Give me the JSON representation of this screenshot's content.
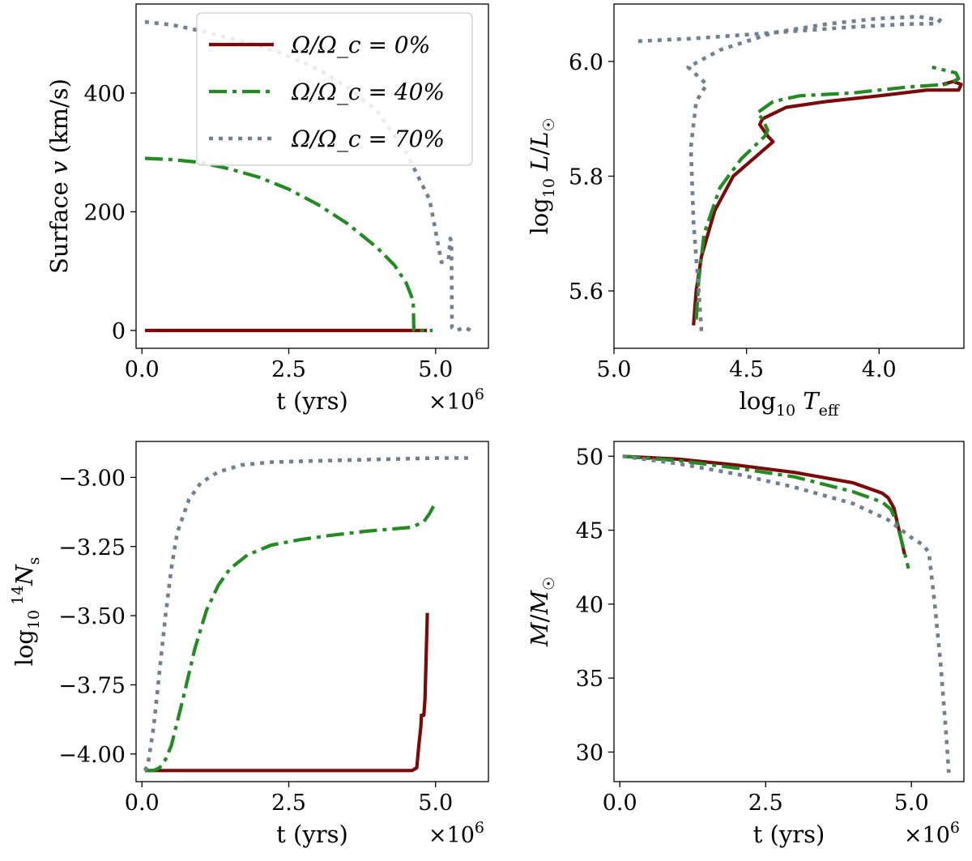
{
  "colors": {
    "omega0": "#7b0a0a",
    "omega40": "#228b22",
    "omega70": "#708090"
  },
  "legend": {
    "placement": "top-right of first panel",
    "entries": [
      {
        "series": "omega0",
        "label": "Ω/Ω_c = 0%"
      },
      {
        "series": "omega40",
        "label": "Ω/Ω_c = 40%"
      },
      {
        "series": "omega70",
        "label": "Ω/Ω_c = 70%"
      }
    ]
  },
  "chart_data": [
    {
      "id": "velocity",
      "type": "line",
      "xlabel": "t (yrs)",
      "ylabel": "Surface v (km/s)",
      "x_multiplier": "×10^6",
      "xlim": [
        -0.1,
        5.9
      ],
      "ylim": [
        -30,
        550
      ],
      "xticks": [
        0.0,
        2.5,
        5.0
      ],
      "xtick_labels": [
        "0.0",
        "2.5",
        "5.0"
      ],
      "yticks": [
        0,
        200,
        400
      ],
      "ytick_labels": [
        "0",
        "200",
        "400"
      ],
      "series": [
        {
          "key": "omega0",
          "name": "Ω/Ω_c = 0%",
          "style": "solid",
          "points": [
            [
              0.05,
              0
            ],
            [
              4.85,
              0
            ]
          ]
        },
        {
          "key": "omega40",
          "name": "Ω/Ω_c = 40%",
          "style": "dashdot",
          "points": [
            [
              0.05,
              290
            ],
            [
              0.5,
              288
            ],
            [
              1.0,
              283
            ],
            [
              1.5,
              272
            ],
            [
              2.0,
              258
            ],
            [
              2.5,
              238
            ],
            [
              3.0,
              212
            ],
            [
              3.5,
              180
            ],
            [
              4.0,
              140
            ],
            [
              4.3,
              110
            ],
            [
              4.5,
              80
            ],
            [
              4.62,
              50
            ],
            [
              4.63,
              0
            ],
            [
              4.95,
              0
            ]
          ]
        },
        {
          "key": "omega70",
          "name": "Ω/Ω_c = 70%",
          "style": "dotted",
          "points": [
            [
              0.05,
              520
            ],
            [
              0.5,
              515
            ],
            [
              1.0,
              505
            ],
            [
              1.5,
              492
            ],
            [
              2.0,
              480
            ],
            [
              2.5,
              462
            ],
            [
              3.0,
              440
            ],
            [
              3.5,
              410
            ],
            [
              4.0,
              370
            ],
            [
              4.5,
              300
            ],
            [
              4.9,
              220
            ],
            [
              5.1,
              115
            ],
            [
              5.22,
              120
            ],
            [
              5.25,
              155
            ],
            [
              5.27,
              150
            ],
            [
              5.28,
              5
            ],
            [
              5.35,
              0
            ],
            [
              5.5,
              5
            ],
            [
              5.6,
              0
            ]
          ]
        }
      ]
    },
    {
      "id": "hrd",
      "type": "line",
      "xlabel": "log₁₀ T_eff",
      "ylabel": "log₁₀ L/L☉",
      "xlim": [
        5.0,
        3.68
      ],
      "ylim": [
        5.5,
        6.1
      ],
      "xticks": [
        5.0,
        4.5,
        4.0
      ],
      "xtick_labels": [
        "5.0",
        "4.5",
        "4.0"
      ],
      "yticks": [
        5.6,
        5.8,
        6.0
      ],
      "ytick_labels": [
        "5.6",
        "5.8",
        "6.0"
      ],
      "series": [
        {
          "key": "omega0",
          "name": "Ω/Ω_c = 0%",
          "style": "solid",
          "points": [
            [
              4.7,
              5.54
            ],
            [
              4.69,
              5.6
            ],
            [
              4.67,
              5.66
            ],
            [
              4.62,
              5.74
            ],
            [
              4.55,
              5.8
            ],
            [
              4.45,
              5.84
            ],
            [
              4.4,
              5.86
            ],
            [
              4.42,
              5.87
            ],
            [
              4.45,
              5.89
            ],
            [
              4.44,
              5.9
            ],
            [
              4.35,
              5.92
            ],
            [
              4.2,
              5.93
            ],
            [
              4.0,
              5.94
            ],
            [
              3.82,
              5.95
            ],
            [
              3.7,
              5.95
            ],
            [
              3.69,
              5.96
            ],
            [
              3.72,
              5.965
            ],
            [
              3.76,
              5.96
            ]
          ]
        },
        {
          "key": "omega40",
          "name": "Ω/Ω_c = 40%",
          "style": "dashdot",
          "points": [
            [
              4.69,
              5.55
            ],
            [
              4.68,
              5.62
            ],
            [
              4.66,
              5.7
            ],
            [
              4.6,
              5.78
            ],
            [
              4.52,
              5.83
            ],
            [
              4.43,
              5.87
            ],
            [
              4.42,
              5.88
            ],
            [
              4.44,
              5.9
            ],
            [
              4.46,
              5.91
            ],
            [
              4.4,
              5.93
            ],
            [
              4.3,
              5.94
            ],
            [
              4.1,
              5.945
            ],
            [
              3.9,
              5.955
            ],
            [
              3.75,
              5.96
            ],
            [
              3.72,
              5.965
            ],
            [
              3.7,
              5.97
            ],
            [
              3.71,
              5.98
            ],
            [
              3.8,
              5.99
            ]
          ]
        },
        {
          "key": "omega70",
          "name": "Ω/Ω_c = 70%",
          "style": "dotted",
          "points": [
            [
              4.67,
              5.53
            ],
            [
              4.68,
              5.6
            ],
            [
              4.7,
              5.72
            ],
            [
              4.71,
              5.85
            ],
            [
              4.69,
              5.93
            ],
            [
              4.65,
              5.96
            ],
            [
              4.72,
              5.99
            ],
            [
              4.6,
              6.02
            ],
            [
              4.4,
              6.05
            ],
            [
              4.2,
              6.065
            ],
            [
              4.0,
              6.075
            ],
            [
              3.85,
              6.078
            ],
            [
              3.77,
              6.072
            ],
            [
              3.78,
              6.066
            ],
            [
              3.9,
              6.065
            ],
            [
              4.1,
              6.06
            ],
            [
              4.4,
              6.05
            ],
            [
              4.7,
              6.04
            ],
            [
              4.92,
              6.035
            ]
          ]
        }
      ]
    },
    {
      "id": "nitrogen",
      "type": "line",
      "xlabel": "t (yrs)",
      "ylabel": "log₁₀ ¹⁴N_s",
      "x_multiplier": "×10^6",
      "xlim": [
        -0.1,
        5.9
      ],
      "ylim": [
        -4.1,
        -2.87
      ],
      "xticks": [
        0.0,
        2.5,
        5.0
      ],
      "xtick_labels": [
        "0.0",
        "2.5",
        "5.0"
      ],
      "yticks": [
        -4.0,
        -3.75,
        -3.5,
        -3.25,
        -3.0
      ],
      "ytick_labels": [
        "−4.00",
        "−3.75",
        "−3.50",
        "−3.25",
        "−3.00"
      ],
      "series": [
        {
          "key": "omega0",
          "name": "Ω/Ω_c = 0%",
          "style": "solid",
          "points": [
            [
              0.05,
              -4.06
            ],
            [
              4.6,
              -4.06
            ],
            [
              4.68,
              -4.05
            ],
            [
              4.72,
              -3.96
            ],
            [
              4.75,
              -3.9
            ],
            [
              4.76,
              -3.86
            ],
            [
              4.8,
              -3.86
            ],
            [
              4.82,
              -3.8
            ],
            [
              4.84,
              -3.65
            ],
            [
              4.86,
              -3.49
            ]
          ]
        },
        {
          "key": "omega40",
          "name": "Ω/Ω_c = 40%",
          "style": "dashdot",
          "points": [
            [
              0.05,
              -4.06
            ],
            [
              0.2,
              -4.06
            ],
            [
              0.3,
              -4.05
            ],
            [
              0.4,
              -4.02
            ],
            [
              0.5,
              -3.97
            ],
            [
              0.7,
              -3.8
            ],
            [
              0.9,
              -3.62
            ],
            [
              1.1,
              -3.48
            ],
            [
              1.3,
              -3.39
            ],
            [
              1.5,
              -3.33
            ],
            [
              1.8,
              -3.28
            ],
            [
              2.2,
              -3.245
            ],
            [
              2.7,
              -3.225
            ],
            [
              3.2,
              -3.21
            ],
            [
              3.8,
              -3.195
            ],
            [
              4.6,
              -3.18
            ],
            [
              4.8,
              -3.16
            ],
            [
              4.9,
              -3.13
            ],
            [
              5.0,
              -3.09
            ]
          ]
        },
        {
          "key": "omega70",
          "name": "Ω/Ω_c = 70%",
          "style": "dotted",
          "points": [
            [
              0.05,
              -4.06
            ],
            [
              0.1,
              -4.04
            ],
            [
              0.2,
              -3.9
            ],
            [
              0.3,
              -3.7
            ],
            [
              0.4,
              -3.5
            ],
            [
              0.5,
              -3.33
            ],
            [
              0.6,
              -3.2
            ],
            [
              0.8,
              -3.08
            ],
            [
              1.0,
              -3.02
            ],
            [
              1.3,
              -2.98
            ],
            [
              1.7,
              -2.955
            ],
            [
              2.2,
              -2.945
            ],
            [
              3.0,
              -2.94
            ],
            [
              4.0,
              -2.935
            ],
            [
              5.0,
              -2.93
            ],
            [
              5.6,
              -2.93
            ]
          ]
        }
      ]
    },
    {
      "id": "mass",
      "type": "line",
      "xlabel": "t (yrs)",
      "ylabel": "M/M☉",
      "x_multiplier": "×10^6",
      "xlim": [
        -0.1,
        5.9
      ],
      "ylim": [
        28,
        51
      ],
      "xticks": [
        0.0,
        2.5,
        5.0
      ],
      "xtick_labels": [
        "0.0",
        "2.5",
        "5.0"
      ],
      "yticks": [
        30,
        35,
        40,
        45,
        50
      ],
      "ytick_labels": [
        "30",
        "35",
        "40",
        "45",
        "50"
      ],
      "series": [
        {
          "key": "omega0",
          "name": "Ω/Ω_c = 0%",
          "style": "solid",
          "points": [
            [
              0.05,
              50
            ],
            [
              1.0,
              49.8
            ],
            [
              2.0,
              49.4
            ],
            [
              3.0,
              48.9
            ],
            [
              4.0,
              48.2
            ],
            [
              4.5,
              47.5
            ],
            [
              4.6,
              47.2
            ],
            [
              4.7,
              46.5
            ],
            [
              4.8,
              44.8
            ],
            [
              4.88,
              43.4
            ]
          ]
        },
        {
          "key": "omega40",
          "name": "Ω/Ω_c = 40%",
          "style": "dashdot",
          "points": [
            [
              0.05,
              50
            ],
            [
              1.0,
              49.7
            ],
            [
              2.0,
              49.2
            ],
            [
              3.0,
              48.6
            ],
            [
              4.0,
              47.6
            ],
            [
              4.5,
              46.9
            ],
            [
              4.65,
              46.4
            ],
            [
              4.75,
              45.5
            ],
            [
              4.85,
              44.0
            ],
            [
              4.95,
              42.4
            ]
          ]
        },
        {
          "key": "omega70",
          "name": "Ω/Ω_c = 70%",
          "style": "dotted",
          "points": [
            [
              0.05,
              50
            ],
            [
              1.0,
              49.5
            ],
            [
              2.0,
              48.8
            ],
            [
              3.0,
              47.9
            ],
            [
              4.0,
              46.8
            ],
            [
              4.6,
              45.7
            ],
            [
              5.0,
              44.5
            ],
            [
              5.2,
              44.0
            ],
            [
              5.3,
              43.5
            ],
            [
              5.4,
              40
            ],
            [
              5.5,
              36
            ],
            [
              5.6,
              31
            ],
            [
              5.64,
              28.6
            ]
          ]
        }
      ]
    }
  ]
}
